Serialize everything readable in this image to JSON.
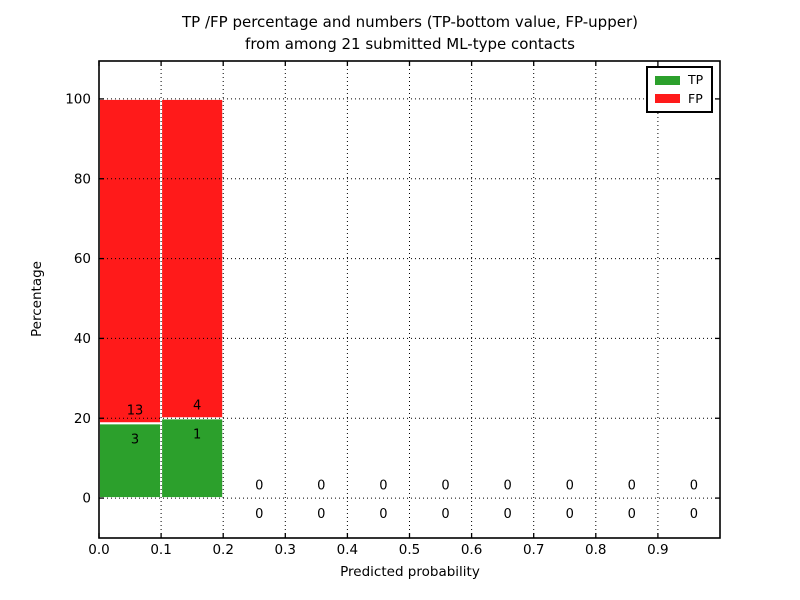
{
  "chart_data": {
    "type": "bar",
    "stacked": true,
    "title_lines": [
      "TP /FP percentage and numbers (TP-bottom value, FP-upper)",
      "from among 21 submitted ML-type contacts"
    ],
    "xlabel": "Predicted probability",
    "ylabel": "Percentage",
    "xlim": [
      0.0,
      1.0
    ],
    "ylim": [
      -10,
      109.5
    ],
    "xticks": [
      "0.0",
      "0.1",
      "0.2",
      "0.3",
      "0.4",
      "0.5",
      "0.6",
      "0.7",
      "0.8",
      "0.9"
    ],
    "yticks": [
      "0",
      "20",
      "40",
      "60",
      "80",
      "100"
    ],
    "grid": "dotted",
    "bin_width": 0.1,
    "total_submitted": 21,
    "bins": [
      {
        "x_start": 0.0,
        "tp_count": 3,
        "fp_count": 13,
        "tp_pct": 18.75,
        "fp_pct": 81.25
      },
      {
        "x_start": 0.1,
        "tp_count": 1,
        "fp_count": 4,
        "tp_pct": 20.0,
        "fp_pct": 80.0
      },
      {
        "x_start": 0.2,
        "tp_count": 0,
        "fp_count": 0,
        "tp_pct": 0,
        "fp_pct": 0
      },
      {
        "x_start": 0.3,
        "tp_count": 0,
        "fp_count": 0,
        "tp_pct": 0,
        "fp_pct": 0
      },
      {
        "x_start": 0.4,
        "tp_count": 0,
        "fp_count": 0,
        "tp_pct": 0,
        "fp_pct": 0
      },
      {
        "x_start": 0.5,
        "tp_count": 0,
        "fp_count": 0,
        "tp_pct": 0,
        "fp_pct": 0
      },
      {
        "x_start": 0.6,
        "tp_count": 0,
        "fp_count": 0,
        "tp_pct": 0,
        "fp_pct": 0
      },
      {
        "x_start": 0.7,
        "tp_count": 0,
        "fp_count": 0,
        "tp_pct": 0,
        "fp_pct": 0
      },
      {
        "x_start": 0.8,
        "tp_count": 0,
        "fp_count": 0,
        "tp_pct": 0,
        "fp_pct": 0
      },
      {
        "x_start": 0.9,
        "tp_count": 0,
        "fp_count": 0,
        "tp_pct": 0,
        "fp_pct": 0
      }
    ],
    "legend": {
      "position": "upper right",
      "entries": [
        {
          "label": "TP",
          "color": "#2ca02c"
        },
        {
          "label": "FP",
          "color": "#ff1a1a"
        }
      ]
    }
  },
  "colors": {
    "tp": "#2ca02c",
    "fp": "#ff1a1a",
    "grid": "#000000",
    "spine": "#000000",
    "background": "#ffffff",
    "bar_edge": "#ffffff"
  }
}
